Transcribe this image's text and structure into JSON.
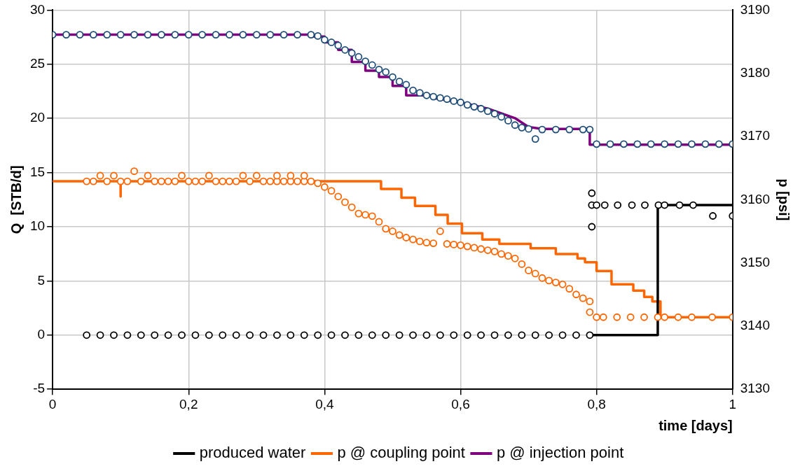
{
  "chart_data": {
    "type": "line",
    "xlabel": "time [days]",
    "ylabel": "Q  [STB/d]",
    "y2label": "p [psi]",
    "xlim": [
      0,
      1
    ],
    "xticks": [
      0,
      {
        "value": 0.2,
        "label": "0,2"
      },
      {
        "value": 0.4,
        "label": "0,4"
      },
      {
        "value": 0.6,
        "label": "0,6"
      },
      {
        "value": 0.8,
        "label": "0,8"
      },
      1
    ],
    "ylim": [
      -5,
      30
    ],
    "yticks": [
      -5,
      0,
      5,
      10,
      15,
      20,
      25,
      30
    ],
    "y2lim": [
      3130,
      3190
    ],
    "y2ticks": [
      3130,
      3140,
      3150,
      3160,
      3170,
      3180,
      3190
    ],
    "grid": true,
    "legend": "bottom",
    "series": [
      {
        "name": "produced water",
        "marker": "none",
        "color": "#000000",
        "x": [
          0.79,
          0.89,
          0.89,
          1
        ],
        "values": [
          0,
          0,
          12,
          12
        ]
      },
      {
        "name": "p @ coupling point",
        "axis": "y2",
        "marker": "none",
        "color": "#ff6600",
        "x": [
          0,
          0.1,
          0.1,
          0.1,
          0.483,
          0.483,
          0.513,
          0.513,
          0.533,
          0.533,
          0.563,
          0.563,
          0.581,
          0.581,
          0.602,
          0.602,
          0.632,
          0.632,
          0.657,
          0.657,
          0.703,
          0.703,
          0.74,
          0.74,
          0.772,
          0.772,
          0.783,
          0.783,
          0.8,
          0.8,
          0.822,
          0.822,
          0.854,
          0.854,
          0.87,
          0.87,
          0.882,
          0.882,
          0.894,
          0.894,
          1
        ],
        "values": [
          3162.9,
          3162.9,
          3160.5,
          3162.9,
          3162.9,
          3161.7,
          3161.7,
          3160.3,
          3160.3,
          3159.0,
          3159.0,
          3157.6,
          3157.6,
          3156.2,
          3156.2,
          3154.7,
          3154.7,
          3153.7,
          3153.7,
          3153.0,
          3153.0,
          3152.3,
          3152.3,
          3151.4,
          3151.4,
          3150.7,
          3150.7,
          3150.1,
          3150.1,
          3148.7,
          3148.7,
          3146.6,
          3146.6,
          3145.6,
          3145.6,
          3144.6,
          3144.6,
          3143.9,
          3143.9,
          3141.4,
          3141.4
        ]
      },
      {
        "name": "p @ injection point",
        "axis": "y2",
        "marker": "none",
        "color": "#7f007f",
        "x": [
          0,
          0.38,
          0.38,
          0.4,
          0.4,
          0.42,
          0.42,
          0.44,
          0.44,
          0.46,
          0.46,
          0.48,
          0.48,
          0.5,
          0.5,
          0.52,
          0.52,
          0.56,
          0.56,
          0.6,
          0.64,
          0.68,
          0.7,
          0.72,
          0.79,
          0.79,
          1
        ],
        "values": [
          3186.1,
          3186.1,
          3185.8,
          3185.8,
          3184.9,
          3184.9,
          3183.7,
          3183.7,
          3181.8,
          3181.8,
          3180.4,
          3180.4,
          3179.4,
          3179.4,
          3178.0,
          3178.0,
          3176.5,
          3176.5,
          3176.1,
          3175.4,
          3174.4,
          3172.9,
          3171.5,
          3171.2,
          3171.2,
          3168.7,
          3168.7
        ]
      },
      {
        "type": "scatter",
        "marker": "circle",
        "color": "#1f4e79",
        "axis": "y2",
        "x": [
          0,
          0.02,
          0.04,
          0.06,
          0.08,
          0.1,
          0.12,
          0.14,
          0.16,
          0.18,
          0.2,
          0.22,
          0.24,
          0.26,
          0.28,
          0.3,
          0.32,
          0.34,
          0.36,
          0.38,
          0.39,
          0.4,
          0.41,
          0.42,
          0.43,
          0.44,
          0.45,
          0.46,
          0.47,
          0.48,
          0.49,
          0.5,
          0.51,
          0.52,
          0.53,
          0.54,
          0.55,
          0.56,
          0.57,
          0.58,
          0.59,
          0.6,
          0.61,
          0.62,
          0.63,
          0.64,
          0.65,
          0.66,
          0.67,
          0.68,
          0.69,
          0.7,
          0.71,
          0.72,
          0.74,
          0.76,
          0.78,
          0.79,
          0.8,
          0.82,
          0.84,
          0.86,
          0.88,
          0.9,
          0.92,
          0.94,
          0.96,
          0.98,
          1
        ],
        "values": [
          3186.1,
          3186.1,
          3186.1,
          3186.1,
          3186.1,
          3186.1,
          3186.1,
          3186.1,
          3186.1,
          3186.1,
          3186.1,
          3186.1,
          3186.1,
          3186.1,
          3186.1,
          3186.1,
          3186.1,
          3186.1,
          3186.1,
          3186.1,
          3185.9,
          3185.3,
          3184.9,
          3184.4,
          3183.7,
          3183.2,
          3182.6,
          3181.9,
          3181.3,
          3180.6,
          3180.2,
          3179.4,
          3178.7,
          3178.2,
          3177.3,
          3176.9,
          3176.5,
          3176.3,
          3176.1,
          3175.9,
          3175.6,
          3175.4,
          3175.0,
          3174.7,
          3174.4,
          3174.0,
          3173.6,
          3173.1,
          3172.5,
          3171.8,
          3171.4,
          3171.2,
          3169.6,
          3171.1,
          3171.1,
          3171.1,
          3171.1,
          3171.1,
          3168.8,
          3168.8,
          3168.8,
          3168.8,
          3168.8,
          3168.8,
          3168.8,
          3168.8,
          3168.8,
          3168.8,
          3168.8
        ]
      },
      {
        "type": "scatter",
        "marker": "circle",
        "color": "#ff6600",
        "axis": "y2",
        "x": [
          0.05,
          0.06,
          0.07,
          0.08,
          0.09,
          0.1,
          0.11,
          0.12,
          0.13,
          0.14,
          0.15,
          0.16,
          0.17,
          0.18,
          0.19,
          0.2,
          0.21,
          0.22,
          0.23,
          0.24,
          0.25,
          0.26,
          0.27,
          0.28,
          0.29,
          0.3,
          0.31,
          0.32,
          0.33,
          0.34,
          0.35,
          0.36,
          0.37,
          0.38,
          0.33,
          0.35,
          0.37,
          0.39,
          0.4,
          0.41,
          0.42,
          0.43,
          0.44,
          0.45,
          0.46,
          0.47,
          0.48,
          0.49,
          0.5,
          0.51,
          0.52,
          0.53,
          0.54,
          0.55,
          0.56,
          0.57,
          0.58,
          0.59,
          0.6,
          0.61,
          0.62,
          0.63,
          0.64,
          0.65,
          0.66,
          0.67,
          0.68,
          0.69,
          0.7,
          0.71,
          0.72,
          0.73,
          0.74,
          0.75,
          0.76,
          0.77,
          0.78,
          0.79,
          0.79,
          0.8,
          0.81,
          0.83,
          0.85,
          0.87,
          0.89,
          0.9,
          0.92,
          0.94,
          0.97,
          1
        ],
        "values": [
          3162.9,
          3162.9,
          3163.8,
          3162.9,
          3163.8,
          3162.9,
          3162.9,
          3164.5,
          3162.9,
          3163.8,
          3162.9,
          3162.9,
          3162.9,
          3162.9,
          3163.8,
          3162.9,
          3162.9,
          3162.9,
          3163.8,
          3162.9,
          3162.9,
          3162.9,
          3162.9,
          3163.8,
          3162.9,
          3163.8,
          3162.9,
          3162.9,
          3162.9,
          3162.9,
          3162.9,
          3162.9,
          3162.9,
          3162.9,
          3163.8,
          3163.8,
          3163.8,
          3162.6,
          3162.0,
          3161.4,
          3160.5,
          3159.6,
          3158.8,
          3157.8,
          3157.6,
          3157.4,
          3156.5,
          3155.4,
          3155.0,
          3154.4,
          3154.0,
          3153.7,
          3153.4,
          3153.2,
          3153.1,
          3155.0,
          3153.0,
          3152.9,
          3152.8,
          3152.6,
          3152.4,
          3152.2,
          3152.0,
          3151.8,
          3151.4,
          3151.1,
          3150.7,
          3149.8,
          3148.8,
          3148.3,
          3147.6,
          3147.2,
          3146.9,
          3146.6,
          3145.9,
          3145.0,
          3144.4,
          3143.9,
          3142.2,
          3141.4,
          3141.4,
          3141.4,
          3141.4,
          3141.4,
          3141.4,
          3141.4,
          3141.4,
          3141.4,
          3141.4,
          3141.4
        ]
      },
      {
        "type": "scatter",
        "marker": "circle",
        "color": "#000000",
        "x": [
          0.05,
          0.07,
          0.09,
          0.11,
          0.13,
          0.15,
          0.17,
          0.19,
          0.21,
          0.23,
          0.25,
          0.27,
          0.29,
          0.31,
          0.33,
          0.35,
          0.37,
          0.39,
          0.41,
          0.43,
          0.45,
          0.47,
          0.49,
          0.51,
          0.53,
          0.55,
          0.57,
          0.59,
          0.61,
          0.63,
          0.65,
          0.67,
          0.69,
          0.71,
          0.73,
          0.75,
          0.77,
          0.79,
          0.793,
          0.793,
          0.793,
          0.8,
          0.812,
          0.831,
          0.852,
          0.871,
          0.891,
          0.9,
          0.922,
          0.942,
          0.971,
          1
        ],
        "values": [
          0,
          0,
          0,
          0,
          0,
          0,
          0,
          0,
          0,
          0,
          0,
          0,
          0,
          0,
          0,
          0,
          0,
          0,
          0,
          0,
          0,
          0,
          0,
          0,
          0,
          0,
          0,
          0,
          0,
          0,
          0,
          0,
          0,
          0,
          0,
          0,
          0,
          0,
          13.1,
          12.0,
          10.0,
          12.0,
          12.0,
          12.0,
          12.0,
          12.0,
          12.0,
          12.0,
          12.0,
          12.0,
          11.0,
          11.0
        ]
      }
    ]
  }
}
